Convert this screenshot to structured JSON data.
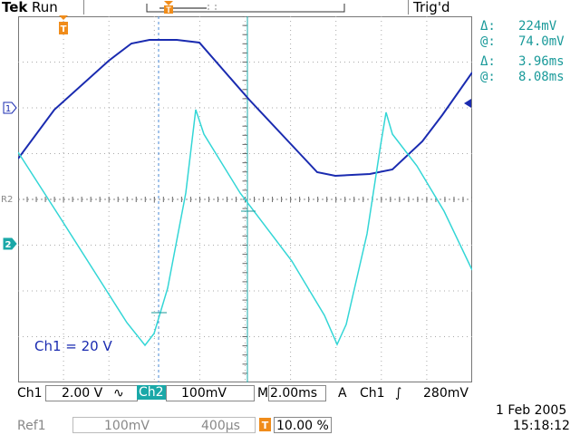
{
  "header": {
    "brand": "Tek",
    "run_state": "Run",
    "trigger_status": "Trig'd"
  },
  "cursors": {
    "volt_delta": "224mV",
    "volt_at": "74.0mV",
    "time_delta": "3.96ms",
    "time_at": "8.08ms",
    "delta_symbol": "Δ:",
    "at_symbol": "@:"
  },
  "markers": {
    "trigger": "T",
    "ch1": "1",
    "ref2": "R2",
    "ch2": "2"
  },
  "annotation": "Ch1 = 20 V",
  "status_bar": {
    "ch1_label": "Ch1",
    "ch1_scale": "2.00 V",
    "ch1_coupling": "∿",
    "ch2_label": "Ch2",
    "ch2_scale": "100mV",
    "timebase_label": "M",
    "timebase": "2.00ms",
    "trigger_mode": "A",
    "trigger_source": "Ch1",
    "trigger_slope": "∫",
    "trigger_level": "280mV"
  },
  "ref_bar": {
    "ref_label": "Ref1",
    "ref_scale": "100mV",
    "ref_time": "400µs",
    "trigger_pos_icon": "T",
    "trigger_pos": "10.00 %"
  },
  "datetime": {
    "date": "1 Feb  2005",
    "time": "15:18:12"
  },
  "colors": {
    "ch1": "#1a2bb0",
    "ch2": "#33d6d6",
    "trigger_orange": "#f08c1a",
    "cursor_teal": "#1a9a9a"
  }
}
